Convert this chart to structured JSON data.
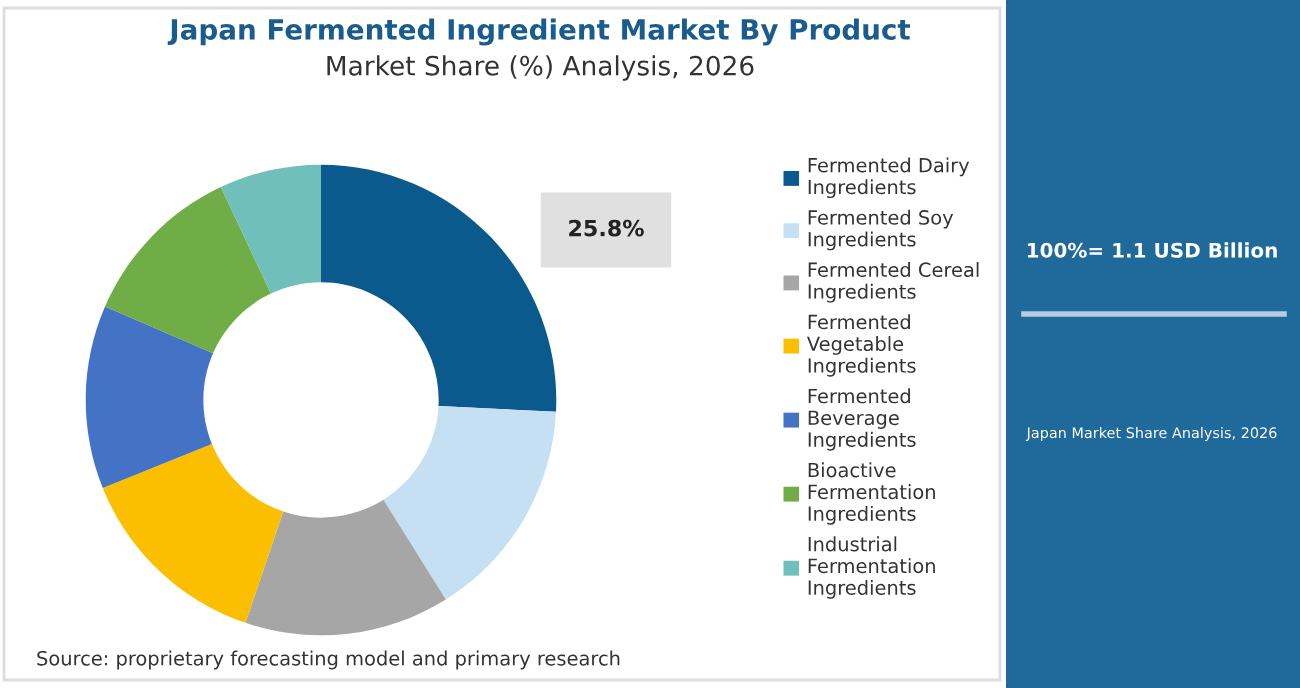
{
  "chart_data": {
    "type": "donut",
    "title": "Japan Fermented Ingredient Market By Product",
    "subtitle": "Market Share (%) Analysis, 2026",
    "categories": [
      "Fermented Dairy Ingredients",
      "Fermented Soy Ingredients",
      "Fermented Cereal Ingredients",
      "Fermented Vegetable Ingredients",
      "Fermented Beverage Ingredients",
      "Bioactive Fermentation Ingredients",
      "Industrial Fermentation Ingredients"
    ],
    "values": [
      25.8,
      15.3,
      14.1,
      13.7,
      12.6,
      11.5,
      7.0
    ],
    "value_labels": [
      "25.8%",
      null,
      null,
      null,
      null,
      null,
      null
    ],
    "colors": [
      "#0b5a8e",
      "#c5e0f2",
      "#a6a6a6",
      "#fbbf00",
      "#4472c4",
      "#70ad47",
      "#70bfbb"
    ],
    "legend": "right",
    "annotations": [
      "100%= 1.1 USD Billion",
      "Japan Market Share Analysis, 2026",
      "Source: proprietary forecasting model and primary research"
    ]
  }
}
